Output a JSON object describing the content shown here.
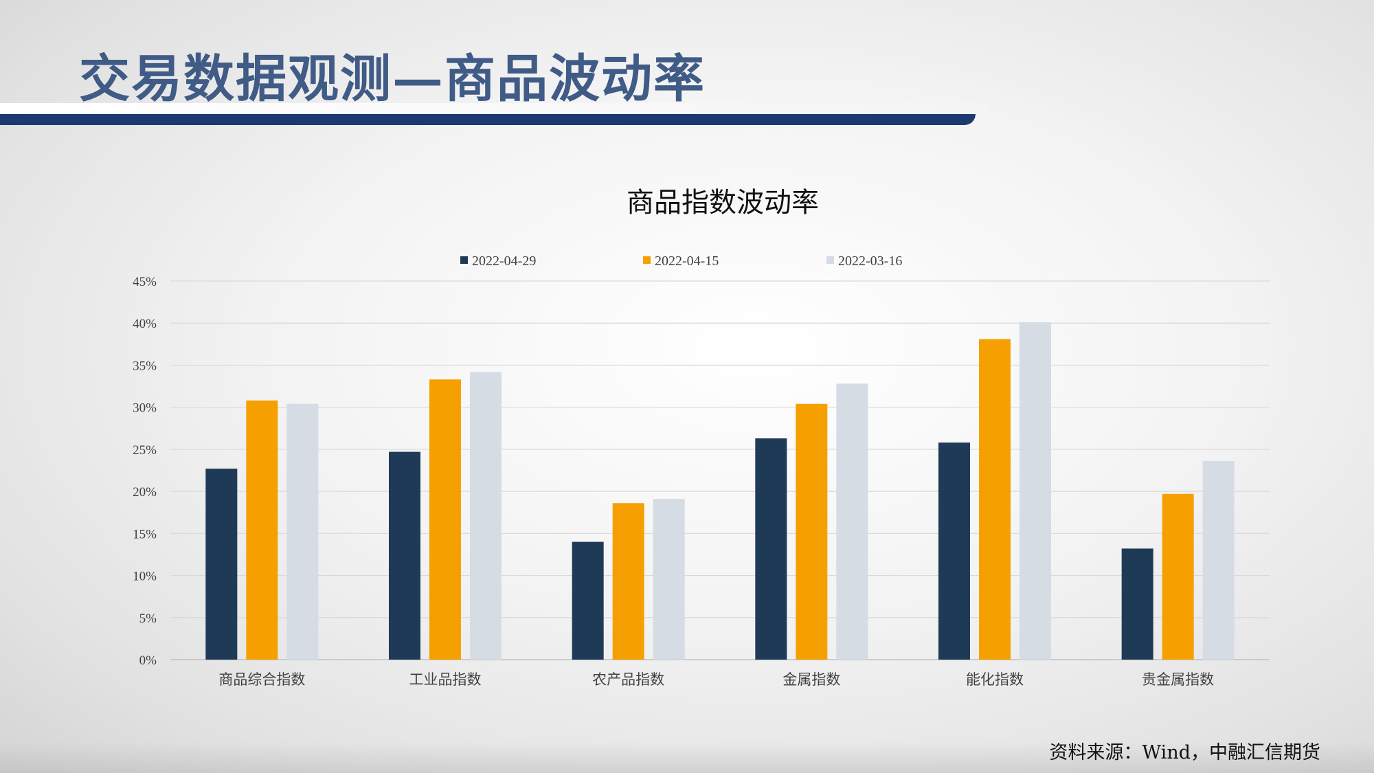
{
  "slide": {
    "title": "交易数据观测—商品波动率",
    "source": "资料来源：Wind，中融汇信期货",
    "colors": {
      "title": "#3f5b86",
      "band": "#1c3a70"
    }
  },
  "chart_data": {
    "type": "bar",
    "title": "商品指数波动率",
    "xlabel": "",
    "ylabel": "",
    "categories": [
      "商品综合指数",
      "工业品指数",
      "农产品指数",
      "金属指数",
      "能化指数",
      "贵金属指数"
    ],
    "series": [
      {
        "name": "2022-04-29",
        "color": "#1f3a57",
        "values": [
          22.7,
          24.7,
          14.0,
          26.3,
          25.8,
          13.2
        ]
      },
      {
        "name": "2022-04-15",
        "color": "#f5a000",
        "values": [
          30.8,
          33.3,
          18.6,
          30.4,
          38.1,
          19.7
        ]
      },
      {
        "name": "2022-03-16",
        "color": "#d6dce4",
        "values": [
          30.4,
          34.2,
          19.1,
          32.8,
          40.1,
          23.6
        ]
      }
    ],
    "ylim": [
      0,
      45
    ],
    "yticks": [
      0,
      5,
      10,
      15,
      20,
      25,
      30,
      35,
      40,
      45
    ],
    "ytick_labels": [
      "0%",
      "5%",
      "10%",
      "15%",
      "20%",
      "25%",
      "30%",
      "35%",
      "40%",
      "45%"
    ],
    "grid": true,
    "legend_position": "top"
  }
}
